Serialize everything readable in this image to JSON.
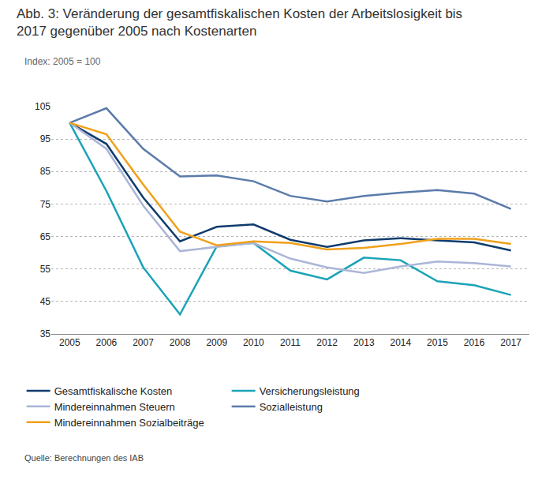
{
  "chart_data": {
    "type": "line",
    "title": "Abb. 3: Veränderung der gesamtfiskalischen Kosten der Arbeitslosigkeit bis 2017 gegenüber 2005 nach Kostenarten",
    "subtitle": "Index: 2005 = 100",
    "source": "Quelle: Berechnungen des IAB",
    "categories": [
      "2005",
      "2006",
      "2007",
      "2008",
      "2009",
      "2010",
      "2011",
      "2012",
      "2013",
      "2014",
      "2015",
      "2016",
      "2017"
    ],
    "series": [
      {
        "name": "Gesamtfiskalische Kosten",
        "color": "#0f3b6c",
        "values": [
          100,
          93.5,
          77,
          63.5,
          68,
          68.7,
          64,
          61.8,
          63.8,
          64.5,
          63.8,
          63.2,
          60.7
        ]
      },
      {
        "name": "Versicherungsleistung",
        "color": "#1ba3b6",
        "values": [
          100,
          79,
          55.5,
          41,
          62,
          63,
          54.5,
          51.8,
          58.5,
          57.7,
          51.2,
          50,
          47
        ]
      },
      {
        "name": "Mindereinnahmen Steuern",
        "color": "#abb5d7",
        "values": [
          100,
          92,
          74.5,
          60.5,
          61.8,
          63,
          58.2,
          55.5,
          53.8,
          55.8,
          57.3,
          56.8,
          55.8
        ]
      },
      {
        "name": "Sozialleistung",
        "color": "#5b7bab",
        "values": [
          100,
          104.5,
          92,
          83.5,
          83.8,
          82,
          77.5,
          75.8,
          77.5,
          78.5,
          79.3,
          78.2,
          73.5
        ]
      },
      {
        "name": "Mindereinnahmen Sozialbeiträge",
        "color": "#f0a01a",
        "values": [
          100,
          96.5,
          81,
          66.5,
          62.3,
          63.5,
          63,
          61,
          61.5,
          62.7,
          64.3,
          64.3,
          62.7
        ]
      }
    ],
    "ylim": [
      35,
      105
    ],
    "yticks": [
      35,
      45,
      55,
      65,
      75,
      85,
      95,
      105
    ],
    "grid": true,
    "legend": "bottom"
  }
}
